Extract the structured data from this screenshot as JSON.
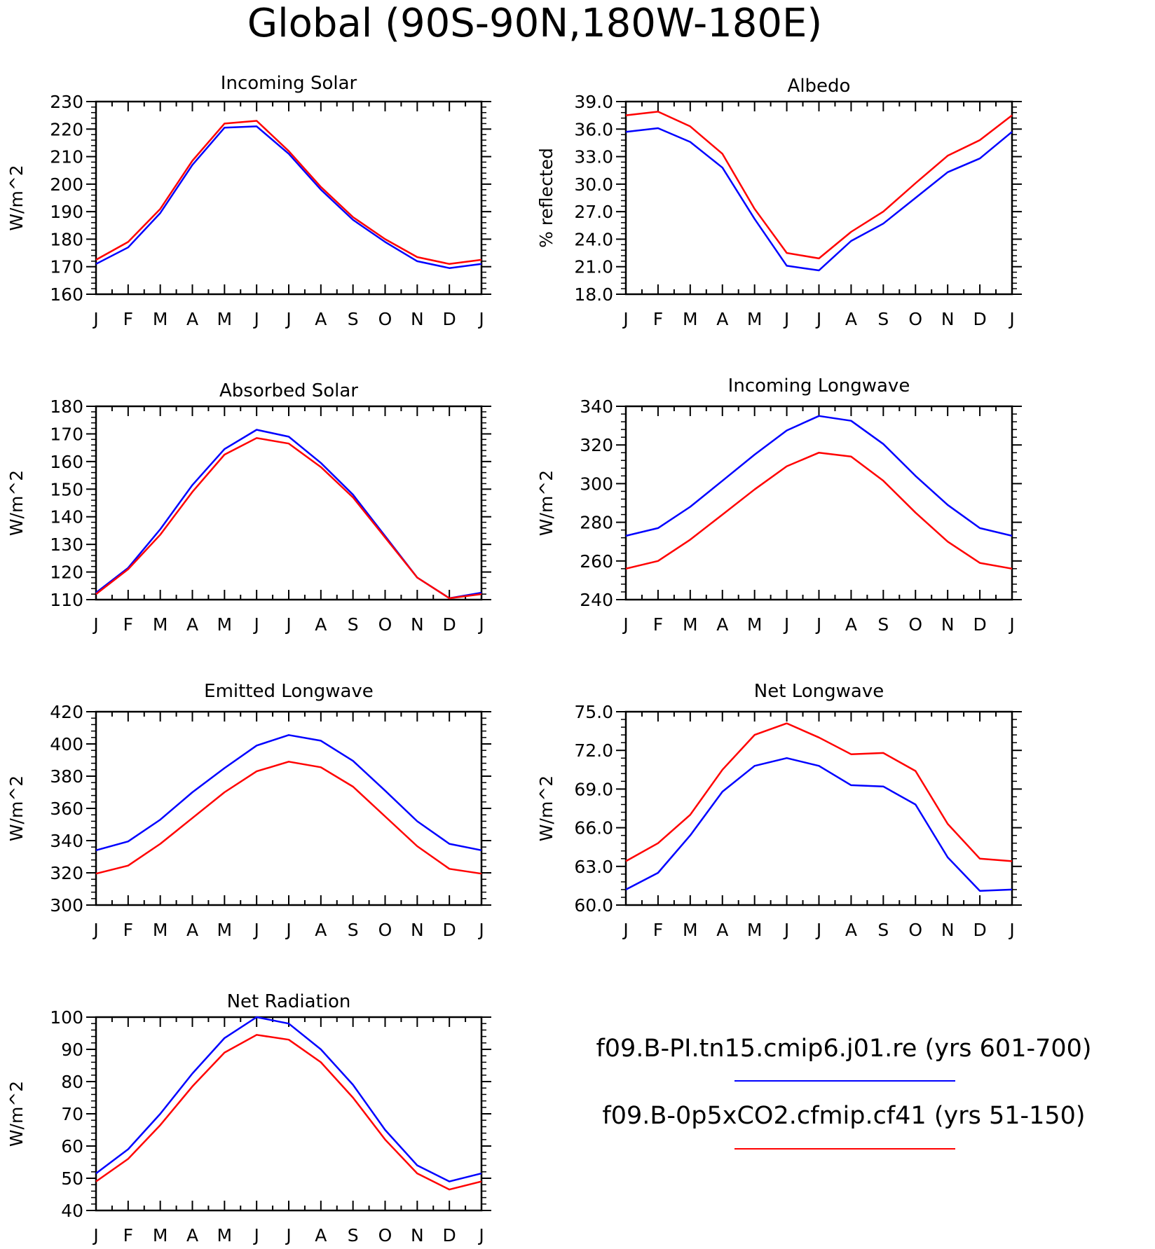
{
  "title": "Global (90S-90N,180W-180E)",
  "legend": {
    "entries": [
      {
        "label": "f09.B-PI.tn15.cmip6.j01.re (yrs 601-700)",
        "color": "#0000ff"
      },
      {
        "label": "f09.B-0p5xCO2.cfmip.cf41 (yrs 51-150)",
        "color": "#ff0000"
      }
    ]
  },
  "chart_data": [
    {
      "type": "line",
      "title": "Incoming Solar",
      "ylabel": "W/m^2",
      "categories": [
        "J",
        "F",
        "M",
        "A",
        "M",
        "J",
        "J",
        "A",
        "S",
        "O",
        "N",
        "D",
        "J"
      ],
      "ylim": [
        160,
        230
      ],
      "yticks": [
        "160",
        "170",
        "180",
        "190",
        "200",
        "210",
        "220",
        "230"
      ],
      "series": [
        {
          "color": "#0000ff",
          "values": [
            171,
            177,
            189.5,
            207,
            220.5,
            221,
            211,
            198,
            187,
            179,
            172,
            169.5,
            171
          ]
        },
        {
          "color": "#ff0000",
          "values": [
            172.5,
            179,
            191,
            208.5,
            222,
            223,
            212,
            199,
            188,
            180,
            173.5,
            171,
            172.5
          ]
        }
      ]
    },
    {
      "type": "line",
      "title": "Albedo",
      "ylabel": "% reflected",
      "categories": [
        "J",
        "F",
        "M",
        "A",
        "M",
        "J",
        "J",
        "A",
        "S",
        "O",
        "N",
        "D",
        "J"
      ],
      "ylim": [
        18.0,
        39.0
      ],
      "yticks": [
        "18.0",
        "21.0",
        "24.0",
        "27.0",
        "30.0",
        "33.0",
        "36.0",
        "39.0"
      ],
      "series": [
        {
          "color": "#0000ff",
          "values": [
            35.7,
            36.1,
            34.6,
            31.8,
            26.2,
            21.1,
            20.6,
            23.8,
            25.7,
            28.5,
            31.3,
            32.8,
            35.7
          ]
        },
        {
          "color": "#ff0000",
          "values": [
            37.5,
            37.9,
            36.3,
            33.3,
            27.3,
            22.5,
            21.9,
            24.8,
            27.0,
            30.1,
            33.1,
            34.8,
            37.5
          ]
        }
      ]
    },
    {
      "type": "line",
      "title": "Absorbed Solar",
      "ylabel": "W/m^2",
      "categories": [
        "J",
        "F",
        "M",
        "A",
        "M",
        "J",
        "J",
        "A",
        "S",
        "O",
        "N",
        "D",
        "J"
      ],
      "ylim": [
        110,
        180
      ],
      "yticks": [
        "110",
        "120",
        "130",
        "140",
        "150",
        "160",
        "170",
        "180"
      ],
      "series": [
        {
          "color": "#0000ff",
          "values": [
            112.5,
            121.5,
            135.5,
            151.5,
            164.5,
            171.5,
            169,
            159.5,
            148,
            133,
            118,
            110.5,
            112.5
          ]
        },
        {
          "color": "#ff0000",
          "values": [
            112,
            121,
            133.5,
            149,
            162.5,
            168.5,
            166.5,
            158,
            147,
            132.5,
            118,
            110.5,
            112
          ]
        }
      ]
    },
    {
      "type": "line",
      "title": "Incoming Longwave",
      "ylabel": "W/m^2",
      "categories": [
        "J",
        "F",
        "M",
        "A",
        "M",
        "J",
        "J",
        "A",
        "S",
        "O",
        "N",
        "D",
        "J"
      ],
      "ylim": [
        240,
        340
      ],
      "yticks": [
        "240",
        "260",
        "280",
        "300",
        "320",
        "340"
      ],
      "series": [
        {
          "color": "#0000ff",
          "values": [
            273,
            277,
            288,
            301.5,
            315,
            327.5,
            335,
            332.5,
            320.5,
            304,
            289,
            277,
            273
          ]
        },
        {
          "color": "#ff0000",
          "values": [
            256,
            260,
            271,
            284,
            297,
            309,
            316,
            314,
            301.5,
            285,
            270,
            259,
            256
          ]
        }
      ]
    },
    {
      "type": "line",
      "title": "Emitted Longwave",
      "ylabel": "W/m^2",
      "categories": [
        "J",
        "F",
        "M",
        "A",
        "M",
        "J",
        "J",
        "A",
        "S",
        "O",
        "N",
        "D",
        "J"
      ],
      "ylim": [
        300,
        420
      ],
      "yticks": [
        "300",
        "320",
        "340",
        "360",
        "380",
        "400",
        "420"
      ],
      "series": [
        {
          "color": "#0000ff",
          "values": [
            334,
            339.5,
            353,
            370,
            385,
            399,
            405.5,
            402,
            389.5,
            371,
            352,
            338,
            334
          ]
        },
        {
          "color": "#ff0000",
          "values": [
            319.5,
            324.5,
            338,
            354,
            370,
            383,
            389,
            385.5,
            373.5,
            355,
            336.5,
            322.5,
            319.5
          ]
        }
      ]
    },
    {
      "type": "line",
      "title": "Net Longwave",
      "ylabel": "W/m^2",
      "categories": [
        "J",
        "F",
        "M",
        "A",
        "M",
        "J",
        "J",
        "A",
        "S",
        "O",
        "N",
        "D",
        "J"
      ],
      "ylim": [
        60.0,
        75.0
      ],
      "yticks": [
        "60.0",
        "63.0",
        "66.0",
        "69.0",
        "72.0",
        "75.0"
      ],
      "series": [
        {
          "color": "#0000ff",
          "values": [
            61.2,
            62.5,
            65.4,
            68.8,
            70.8,
            71.4,
            70.8,
            69.3,
            69.2,
            67.8,
            63.7,
            61.1,
            61.2
          ]
        },
        {
          "color": "#ff0000",
          "values": [
            63.4,
            64.8,
            67.0,
            70.5,
            73.2,
            74.1,
            73.0,
            71.7,
            71.8,
            70.4,
            66.3,
            63.6,
            63.4
          ]
        }
      ]
    },
    {
      "type": "line",
      "title": "Net Radiation",
      "ylabel": "W/m^2",
      "categories": [
        "J",
        "F",
        "M",
        "A",
        "M",
        "J",
        "J",
        "A",
        "S",
        "O",
        "N",
        "D",
        "J"
      ],
      "ylim": [
        40,
        100
      ],
      "yticks": [
        "40",
        "50",
        "60",
        "70",
        "80",
        "90",
        "100"
      ],
      "series": [
        {
          "color": "#0000ff",
          "values": [
            51.5,
            59,
            70,
            82.5,
            93.5,
            100,
            98,
            90,
            79,
            65,
            54,
            49,
            51.5
          ]
        },
        {
          "color": "#ff0000",
          "values": [
            49,
            56,
            66.5,
            78.5,
            89,
            94.5,
            93,
            86,
            75,
            62,
            51.5,
            46.5,
            49
          ]
        }
      ]
    }
  ]
}
